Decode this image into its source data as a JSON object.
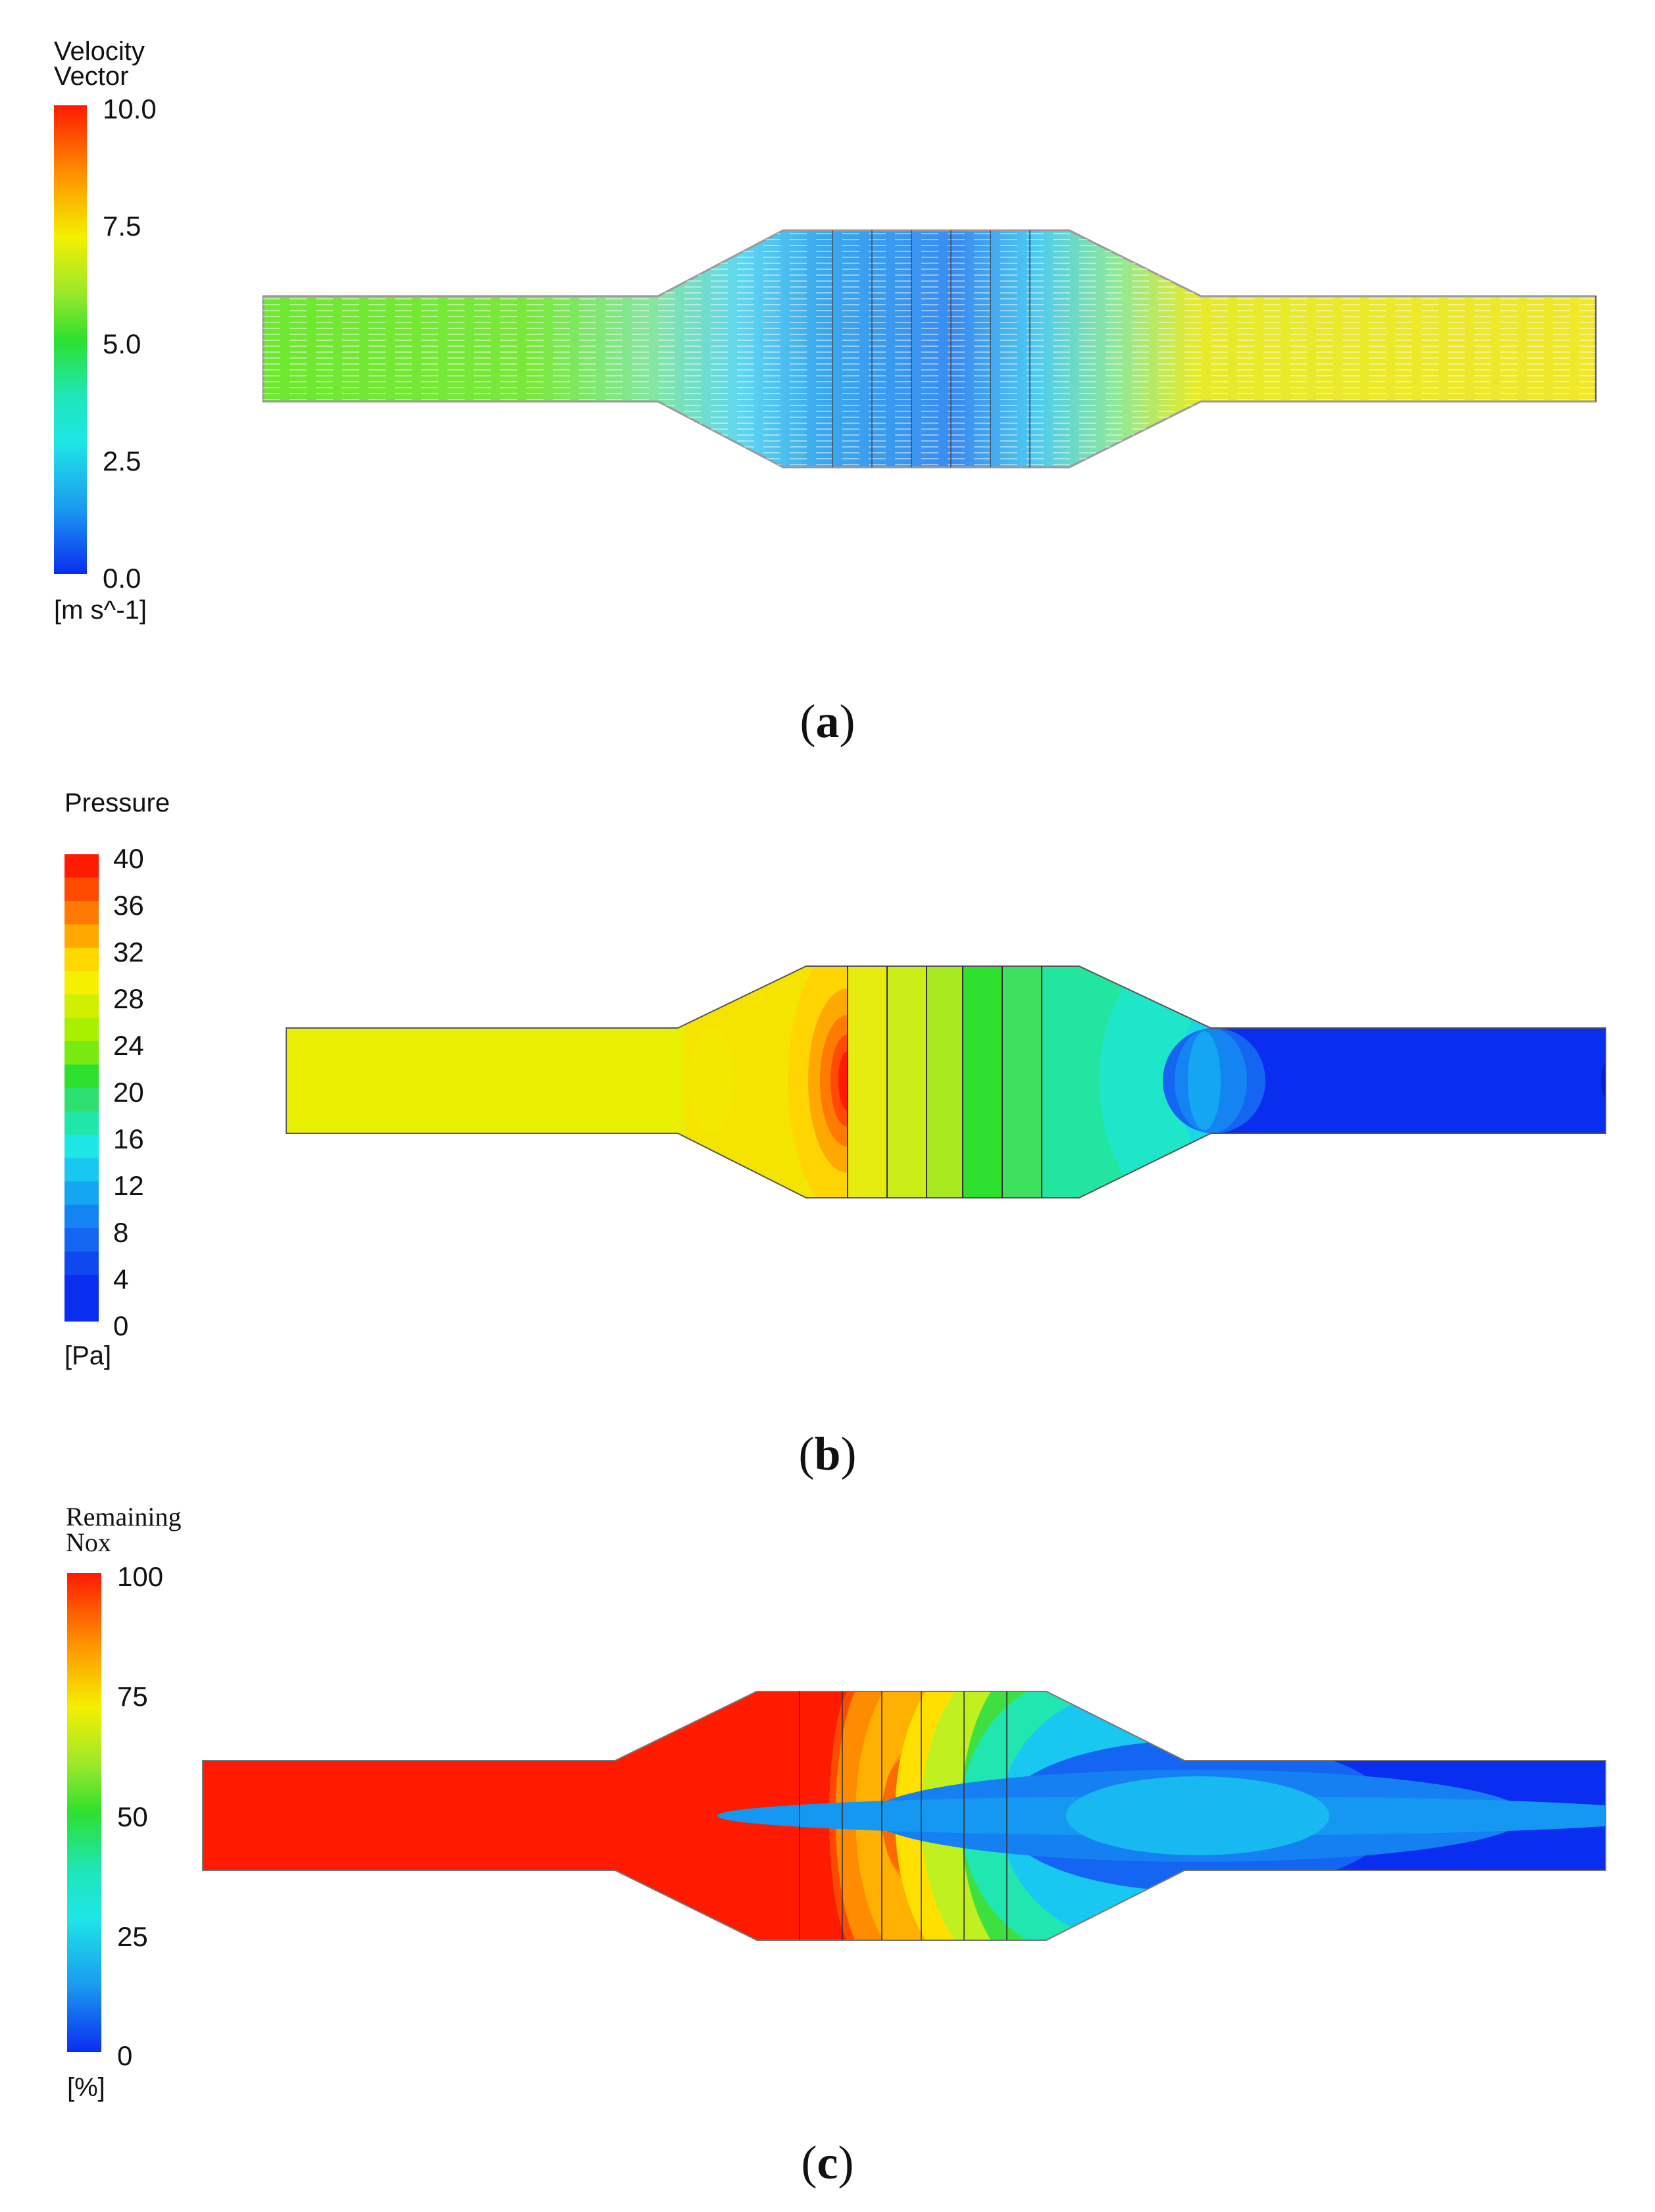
{
  "panels": [
    {
      "id": "a",
      "legend_title_line1": "Velocity",
      "legend_title_line2": "Vector",
      "unit": "[m s^-1]",
      "ticks": [
        "10.0",
        "7.5",
        "5.0",
        "2.5",
        "0.0"
      ],
      "caption_letter": "a",
      "colormap": "smooth-rainbow"
    },
    {
      "id": "b",
      "legend_title_line1": "Pressure",
      "unit": "[Pa]",
      "ticks": [
        "40",
        "36",
        "32",
        "28",
        "24",
        "20",
        "16",
        "12",
        "8",
        "4",
        "0"
      ],
      "caption_letter": "b",
      "colormap": "banded-rainbow"
    },
    {
      "id": "c",
      "legend_title_line1": "Remaining",
      "legend_title_line2": "Nox",
      "unit": "[%]",
      "ticks": [
        "100",
        "75",
        "50",
        "25",
        "0"
      ],
      "caption_letter": "c",
      "colormap": "smooth-rainbow"
    }
  ],
  "colors": {
    "red": "#ff1a00",
    "orange": "#ff8c00",
    "yellow": "#f4f000",
    "green": "#2ee02e",
    "cyan": "#1ee6e6",
    "blue": "#0a2ef0"
  }
}
